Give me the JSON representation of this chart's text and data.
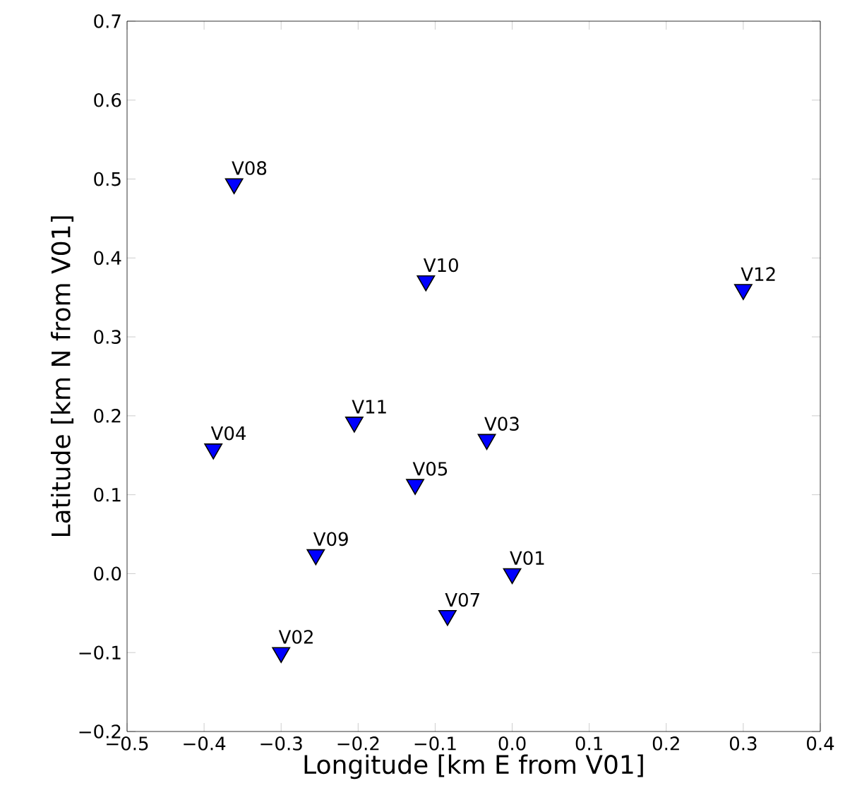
{
  "chart_data": {
    "type": "scatter",
    "xlabel": "Longitude [km E from V01]",
    "ylabel": "Latitude [km N from V01]",
    "x": [
      0.0,
      -0.3,
      -0.033,
      -0.388,
      -0.126,
      -0.084,
      -0.361,
      -0.255,
      -0.112,
      -0.205,
      0.3
    ],
    "values": [
      0.0,
      -0.1,
      0.17,
      0.158,
      0.113,
      -0.053,
      0.494,
      0.024,
      0.371,
      0.192,
      0.36
    ],
    "color": "#0000ff",
    "marker": "triangle",
    "grid": false,
    "xlim": [
      -0.5,
      0.4
    ],
    "xticks": [
      {
        "value": -0.5,
        "label": "−0.5"
      },
      {
        "value": -0.4,
        "label": "−0.4"
      },
      {
        "value": -0.3,
        "label": "−0.3"
      },
      {
        "value": -0.2,
        "label": "−0.2"
      },
      {
        "value": -0.1,
        "label": "−0.1"
      },
      {
        "value": 0,
        "label": "0.0"
      },
      {
        "value": 0.1,
        "label": "0.1"
      },
      {
        "value": 0.2,
        "label": "0.2"
      },
      {
        "value": 0.3,
        "label": "0.3"
      },
      {
        "value": 0.4,
        "label": "0.4"
      }
    ],
    "ylim": [
      -0.2,
      0.7
    ],
    "yticks": [
      {
        "value": -0.2,
        "label": "−0.2"
      },
      {
        "value": -0.1,
        "label": "−0.1"
      },
      {
        "value": 0,
        "label": "0.0"
      },
      {
        "value": 0.1,
        "label": "0.1"
      },
      {
        "value": 0.2,
        "label": "0.2"
      },
      {
        "value": 0.3,
        "label": "0.3"
      },
      {
        "value": 0.4,
        "label": "0.4"
      },
      {
        "value": 0.5,
        "label": "0.5"
      },
      {
        "value": 0.6,
        "label": "0.6"
      },
      {
        "value": 0.7,
        "label": "0.7"
      }
    ],
    "annotations": [
      {
        "text": "V01",
        "x": 0.0,
        "y": 0.0
      },
      {
        "text": "V02",
        "x": -0.3,
        "y": -0.1
      },
      {
        "text": "V03",
        "x": -0.033,
        "y": 0.17
      },
      {
        "text": "V04",
        "x": -0.388,
        "y": 0.158
      },
      {
        "text": "V05",
        "x": -0.126,
        "y": 0.113
      },
      {
        "text": "V07",
        "x": -0.084,
        "y": -0.053
      },
      {
        "text": "V08",
        "x": -0.361,
        "y": 0.494
      },
      {
        "text": "V09",
        "x": -0.255,
        "y": 0.024
      },
      {
        "text": "V10",
        "x": -0.112,
        "y": 0.371
      },
      {
        "text": "V11",
        "x": -0.205,
        "y": 0.192
      },
      {
        "text": "V12",
        "x": 0.3,
        "y": 0.36
      }
    ]
  }
}
